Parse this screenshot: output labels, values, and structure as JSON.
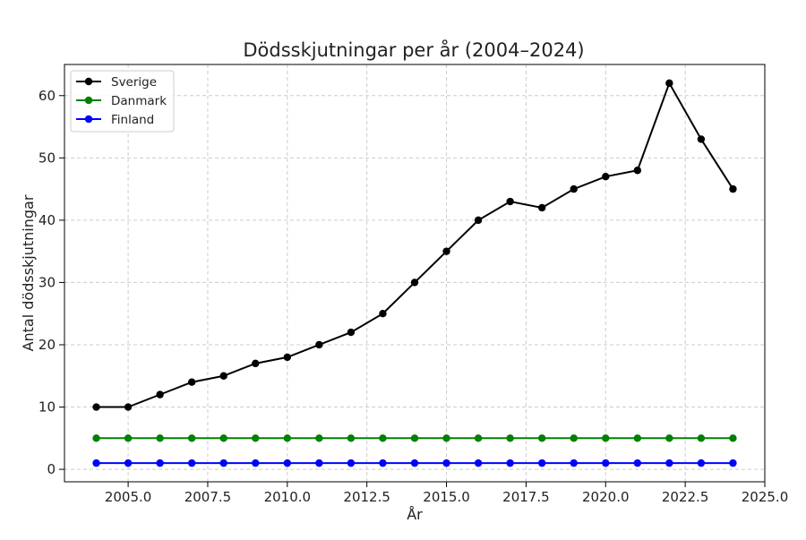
{
  "chart_data": {
    "type": "line",
    "title": "Dödsskjutningar per år (2004–2024)",
    "xlabel": "År",
    "ylabel": "Antal dödsskjutningar",
    "x": [
      2004,
      2005,
      2006,
      2007,
      2008,
      2009,
      2010,
      2011,
      2012,
      2013,
      2014,
      2015,
      2016,
      2017,
      2018,
      2019,
      2020,
      2021,
      2022,
      2023,
      2024
    ],
    "series": [
      {
        "name": "Sverige",
        "color": "#000000",
        "values": [
          10,
          10,
          12,
          14,
          15,
          17,
          18,
          20,
          22,
          25,
          30,
          35,
          40,
          43,
          42,
          45,
          47,
          48,
          62,
          53,
          45
        ]
      },
      {
        "name": "Danmark",
        "color": "#008000",
        "values": [
          5,
          5,
          5,
          5,
          5,
          5,
          5,
          5,
          5,
          5,
          5,
          5,
          5,
          5,
          5,
          5,
          5,
          5,
          5,
          5,
          5
        ]
      },
      {
        "name": "Finland",
        "color": "#0000ff",
        "values": [
          1,
          1,
          1,
          1,
          1,
          1,
          1,
          1,
          1,
          1,
          1,
          1,
          1,
          1,
          1,
          1,
          1,
          1,
          1,
          1,
          1
        ]
      }
    ],
    "xlim": [
      2003,
      2025
    ],
    "ylim": [
      -2,
      65
    ],
    "xticks": [
      2005.0,
      2007.5,
      2010.0,
      2012.5,
      2015.0,
      2017.5,
      2020.0,
      2022.5,
      2025.0
    ],
    "xtick_labels": [
      "2005.0",
      "2007.5",
      "2010.0",
      "2012.5",
      "2015.0",
      "2017.5",
      "2020.0",
      "2022.5",
      "2025.0"
    ],
    "yticks": [
      0,
      10,
      20,
      30,
      40,
      50,
      60
    ],
    "ytick_labels": [
      "0",
      "10",
      "20",
      "30",
      "40",
      "50",
      "60"
    ],
    "grid": true,
    "legend_position": "top-left"
  }
}
